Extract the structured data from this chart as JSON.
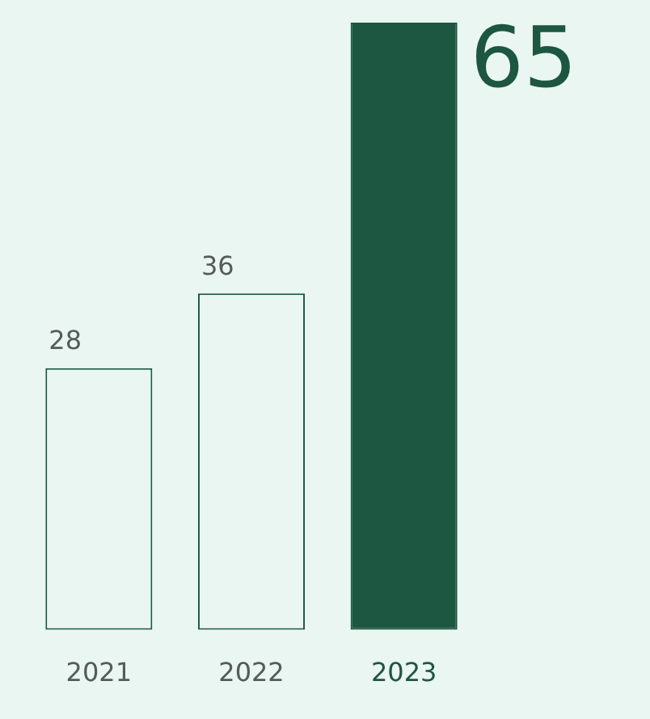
{
  "chart_data": {
    "type": "bar",
    "categories": [
      "2021",
      "2022",
      "2023"
    ],
    "values": [
      28,
      36,
      65
    ],
    "colors": [
      "#eaf6f1",
      "#eaf6f1",
      "#1d5641"
    ],
    "ylim": [
      0,
      65
    ],
    "data_labels": true,
    "tick_labels": "x",
    "grid": false,
    "legend": false
  }
}
